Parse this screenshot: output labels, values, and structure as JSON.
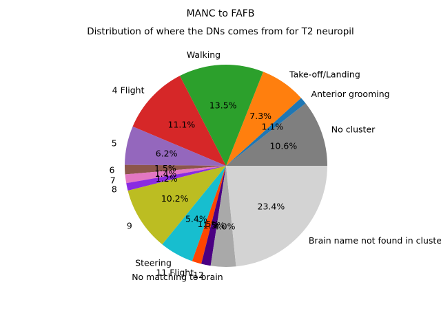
{
  "chart_data": {
    "type": "pie",
    "title": "MANC to FAFB",
    "subtitle": "Distribution of where the DNs comes from for T2 neuropil",
    "start_angle_deg": 0,
    "direction": "counterclockwise",
    "slices": [
      {
        "label": "No cluster",
        "value": 10.6,
        "pct_label": "10.6%",
        "color": "#7f7f7f"
      },
      {
        "label": "Anterior grooming",
        "value": 1.1,
        "pct_label": "1.1%",
        "color": "#1f77b4"
      },
      {
        "label": "Take-off/Landing",
        "value": 7.3,
        "pct_label": "7.3%",
        "color": "#ff7f0e"
      },
      {
        "label": "Walking",
        "value": 13.5,
        "pct_label": "13.5%",
        "color": "#2ca02c"
      },
      {
        "label": "4 Flight",
        "value": 11.1,
        "pct_label": "11.1%",
        "color": "#d62728"
      },
      {
        "label": "5",
        "value": 6.2,
        "pct_label": "6.2%",
        "color": "#9467bd"
      },
      {
        "label": "6",
        "value": 1.5,
        "pct_label": "1.5%",
        "color": "#8c564b"
      },
      {
        "label": "7",
        "value": 1.4,
        "pct_label": "1.4%",
        "color": "#e377c2"
      },
      {
        "label": "8",
        "value": 1.2,
        "pct_label": "1.2%",
        "color": "#8a2be2"
      },
      {
        "label": "9",
        "value": 10.2,
        "pct_label": "10.2%",
        "color": "#bcbd22"
      },
      {
        "label": "Steering",
        "value": 5.4,
        "pct_label": "5.4%",
        "color": "#17becf"
      },
      {
        "label": "11 Flight",
        "value": 1.5,
        "pct_label": "1.5%",
        "color": "#ff4500"
      },
      {
        "label": "12",
        "value": 1.5,
        "pct_label": "1.5%",
        "color": "#4b0082"
      },
      {
        "label": "No matching to brain",
        "value": 4.0,
        "pct_label": "4.0%",
        "color": "#a9a9a9"
      },
      {
        "label": "Brain name not found in clusters",
        "value": 23.4,
        "pct_label": "23.4%",
        "color": "#d3d3d3"
      }
    ]
  }
}
